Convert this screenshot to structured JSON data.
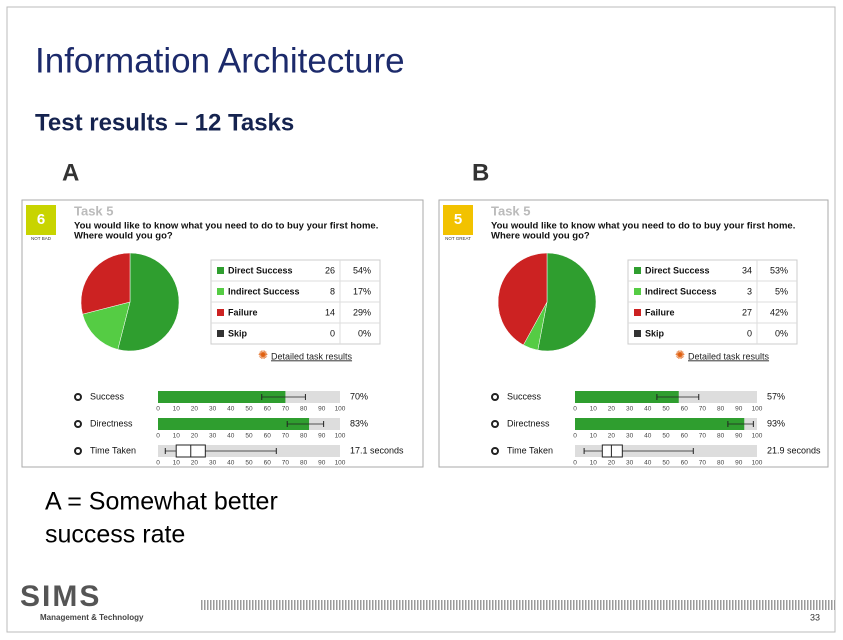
{
  "title": "Information Architecture",
  "subtitle": "Test results – 12 Tasks",
  "axis_ticks": [
    0,
    10,
    20,
    30,
    40,
    50,
    60,
    70,
    80,
    90,
    100
  ],
  "axis_lim": [
    0,
    100
  ],
  "panels": [
    {
      "label": "A",
      "score": "6",
      "score_label": "NOT BAD",
      "score_color": "#c8d400",
      "task": "Task 5",
      "question": [
        "You would like to know what you need to do to buy your first home.",
        "Where would you go?"
      ],
      "pie": {
        "type": "pie",
        "categories": [
          "Direct Success",
          "Indirect Success",
          "Failure",
          "Skip"
        ],
        "colors": [
          "#2f9e2f",
          "#55cc44",
          "#cc2222",
          "#333333"
        ],
        "counts": [
          26,
          8,
          14,
          0
        ],
        "values": [
          54,
          17,
          29,
          0
        ],
        "value_labels": [
          "54%",
          "17%",
          "29%",
          "0%"
        ]
      },
      "link": "Detailed task results",
      "metrics": [
        {
          "name": "Success",
          "value": 70,
          "value_label": "70%",
          "ci": [
            57,
            81
          ]
        },
        {
          "name": "Directness",
          "value": 83,
          "value_label": "83%",
          "ci": [
            71,
            91
          ]
        },
        {
          "name": "Time Taken",
          "box": [
            4,
            10,
            18,
            26,
            65
          ],
          "value_label": "17.1 seconds"
        }
      ]
    },
    {
      "label": "B",
      "score": "5",
      "score_label": "NOT GREAT",
      "score_color": "#f2c200",
      "task": "Task 5",
      "question": [
        "You would like to know what you need to do to buy your first home.",
        "Where would you go?"
      ],
      "pie": {
        "type": "pie",
        "categories": [
          "Direct Success",
          "Indirect Success",
          "Failure",
          "Skip"
        ],
        "colors": [
          "#2f9e2f",
          "#55cc44",
          "#cc2222",
          "#333333"
        ],
        "counts": [
          34,
          3,
          27,
          0
        ],
        "values": [
          53,
          5,
          42,
          0
        ],
        "value_labels": [
          "53%",
          "5%",
          "42%",
          "0%"
        ]
      },
      "link": "Detailed task results",
      "metrics": [
        {
          "name": "Success",
          "value": 57,
          "value_label": "57%",
          "ci": [
            45,
            68
          ]
        },
        {
          "name": "Directness",
          "value": 93,
          "value_label": "93%",
          "ci": [
            84,
            98
          ]
        },
        {
          "name": "Time Taken",
          "box": [
            5,
            15,
            20,
            26,
            65
          ],
          "value_label": "21.9 seconds"
        }
      ]
    }
  ],
  "conclusion": [
    "A = Somewhat better",
    "success rate"
  ],
  "footer": {
    "logo": "SIMS",
    "logo_sub": "Management & Technology",
    "page": "33"
  }
}
